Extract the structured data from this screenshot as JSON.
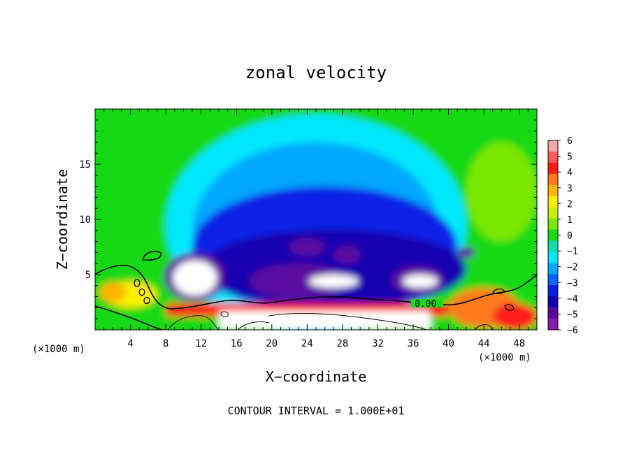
{
  "chart_data": {
    "type": "heatmap",
    "title": "zonal velocity",
    "xlabel": "X−coordinate",
    "ylabel": "Z−coordinate",
    "x_unit_label": "(×1000 m)",
    "y_unit_label": "(×1000 m)",
    "xlim": [
      0,
      50
    ],
    "ylim": [
      0,
      20
    ],
    "x_ticks": [
      4,
      8,
      12,
      16,
      20,
      24,
      28,
      32,
      36,
      40,
      44,
      48
    ],
    "y_ticks": [
      5,
      10,
      15
    ],
    "colorbar": {
      "levels": [
        6,
        5,
        4,
        3,
        2,
        1,
        0,
        -1,
        -2,
        -3,
        -4,
        -5,
        -6
      ],
      "labels": [
        "6",
        "5",
        "4",
        "3",
        "2",
        "1",
        "0",
        "−1",
        "−2",
        "−3",
        "−4",
        "−5",
        "−6"
      ],
      "colors": [
        "#f4a6a6",
        "#ff5a5a",
        "#ff1a1a",
        "#ff7a1a",
        "#ffb400",
        "#ffee00",
        "#c8f000",
        "#7ae800",
        "#19d919",
        "#12ddb0",
        "#00e8ff",
        "#00a8ff",
        "#0064ff",
        "#0a20e6",
        "#1600b0",
        "#5a0aa0",
        "#8a1ab4"
      ]
    },
    "contour_label": "0.00",
    "footer": "CONTOUR INTERVAL = 1.000E+01",
    "regions": [
      {
        "kind": "background",
        "value": 0
      },
      {
        "kind": "blob",
        "cx": 25,
        "cy": 9.5,
        "rx": 17,
        "ry": 10,
        "value": -1.5
      },
      {
        "kind": "blob",
        "cx": 25,
        "cy": 9,
        "rx": 14,
        "ry": 8,
        "value": -2.5
      },
      {
        "kind": "blob",
        "cx": 26,
        "cy": 7.5,
        "rx": 15,
        "ry": 5.5,
        "value": -3.5
      },
      {
        "kind": "blob",
        "cx": 27,
        "cy": 5.5,
        "rx": 15,
        "ry": 3.6,
        "value": -4.5
      },
      {
        "kind": "blob",
        "cx": 46,
        "cy": 12.5,
        "rx": 4,
        "ry": 4.5,
        "value": 0.5
      },
      {
        "kind": "blob",
        "cx": 24,
        "cy": 7.5,
        "rx": 2,
        "ry": 0.8,
        "value": -5.5
      },
      {
        "kind": "blob",
        "cx": 28.5,
        "cy": 6.8,
        "rx": 1.5,
        "ry": 0.8,
        "value": -5.5
      },
      {
        "kind": "blob",
        "cx": 42,
        "cy": 7,
        "rx": 1,
        "ry": 0.5,
        "value": -5.5
      },
      {
        "kind": "blob",
        "cx": 23,
        "cy": 4.4,
        "rx": 5.5,
        "ry": 1.6,
        "value": -5
      },
      {
        "kind": "blob",
        "cx": 11.3,
        "cy": 4.8,
        "rx": 3.5,
        "ry": 2.2,
        "value": -5.5
      },
      {
        "kind": "blob",
        "cx": 36.5,
        "cy": 4.5,
        "rx": 3,
        "ry": 1.3,
        "value": -5.5
      },
      {
        "kind": "blob",
        "cx": 11.3,
        "cy": 4.7,
        "rx": 2.5,
        "ry": 1.6,
        "value": -7
      },
      {
        "kind": "blob",
        "cx": 27,
        "cy": 4.4,
        "rx": 2.8,
        "ry": 0.6,
        "value": -7
      },
      {
        "kind": "blob",
        "cx": 36.8,
        "cy": 4.4,
        "rx": 2,
        "ry": 0.6,
        "value": -7
      },
      {
        "kind": "blob",
        "cx": 4,
        "cy": 3.2,
        "rx": 3,
        "ry": 1.2,
        "value": 2
      },
      {
        "kind": "blob",
        "cx": 2,
        "cy": 3.4,
        "rx": 1.5,
        "ry": 0.9,
        "value": 3
      },
      {
        "kind": "blob",
        "cx": 44,
        "cy": 2,
        "rx": 4,
        "ry": 1.8,
        "value": 3.5
      },
      {
        "kind": "blob",
        "cx": 47.5,
        "cy": 1.2,
        "rx": 2.5,
        "ry": 1.2,
        "value": 4.5
      },
      {
        "kind": "band",
        "x0": 8,
        "x1": 40,
        "y0": 1.2,
        "y1": 2.4,
        "value": 4.5
      },
      {
        "kind": "band",
        "x0": 14,
        "x1": 38,
        "y0": 0,
        "y1": 1.7,
        "value": 7
      }
    ]
  }
}
